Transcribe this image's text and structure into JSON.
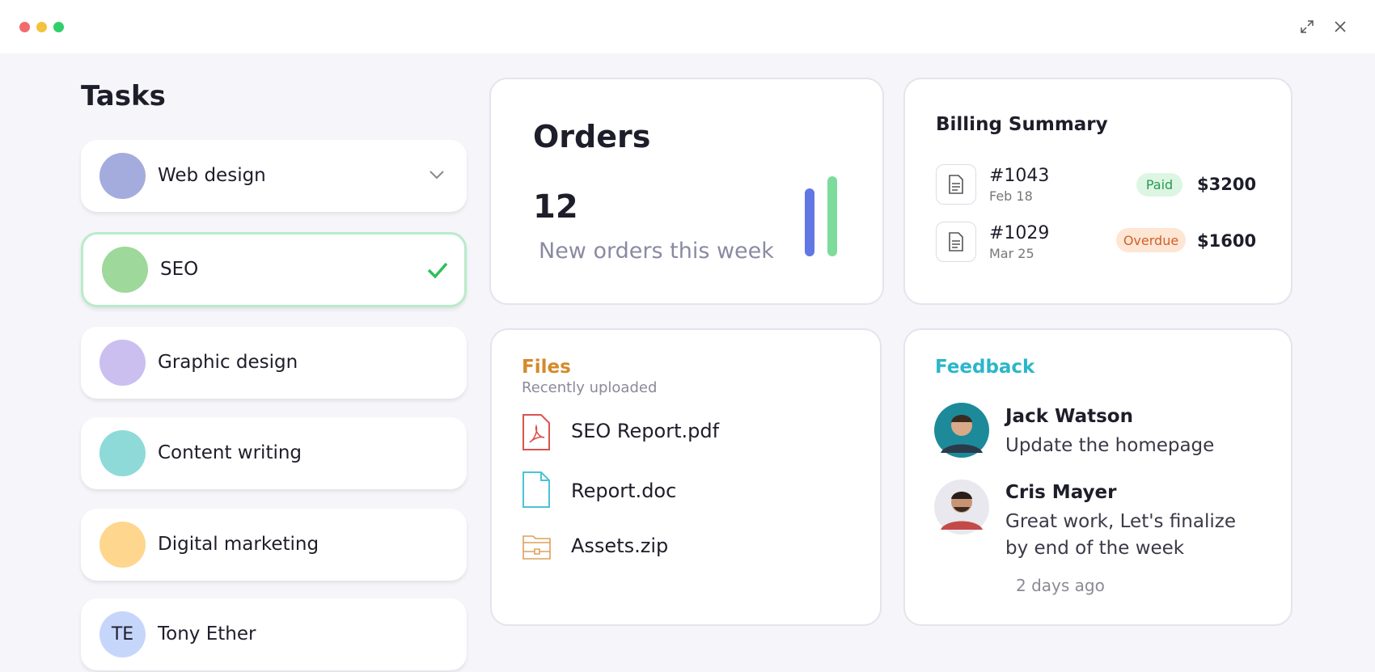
{
  "tasks": {
    "title": "Tasks",
    "items": [
      {
        "label": "Web design"
      },
      {
        "label": "SEO"
      },
      {
        "label": "Graphic design"
      },
      {
        "label": "Content writing"
      },
      {
        "label": "Digital marketing"
      },
      {
        "label": "Tony Ether",
        "initials": "TE"
      }
    ]
  },
  "orders": {
    "title": "Orders",
    "count": 12,
    "caption": "New orders this week"
  },
  "billing": {
    "title": "Billing Summary",
    "invoices": [
      {
        "id": "#1043",
        "date": "Feb 18",
        "status": "Paid",
        "amount": "$3200"
      },
      {
        "id": "#1029",
        "date": "Mar 25",
        "status": "Overdue",
        "amount": "$1600"
      }
    ]
  },
  "files": {
    "title": "Files",
    "subtitle": "Recently uploaded",
    "items": [
      "SEO Report.pdf",
      "Report.doc",
      "Assets.zip"
    ]
  },
  "feedback": {
    "title": "Feedback",
    "items": [
      {
        "name": "Jack Watson",
        "message": "Update the homepage"
      },
      {
        "name": "Cris Mayer",
        "message": "Great work, Let's finalize by end of the week"
      }
    ],
    "time": "2 days ago"
  }
}
